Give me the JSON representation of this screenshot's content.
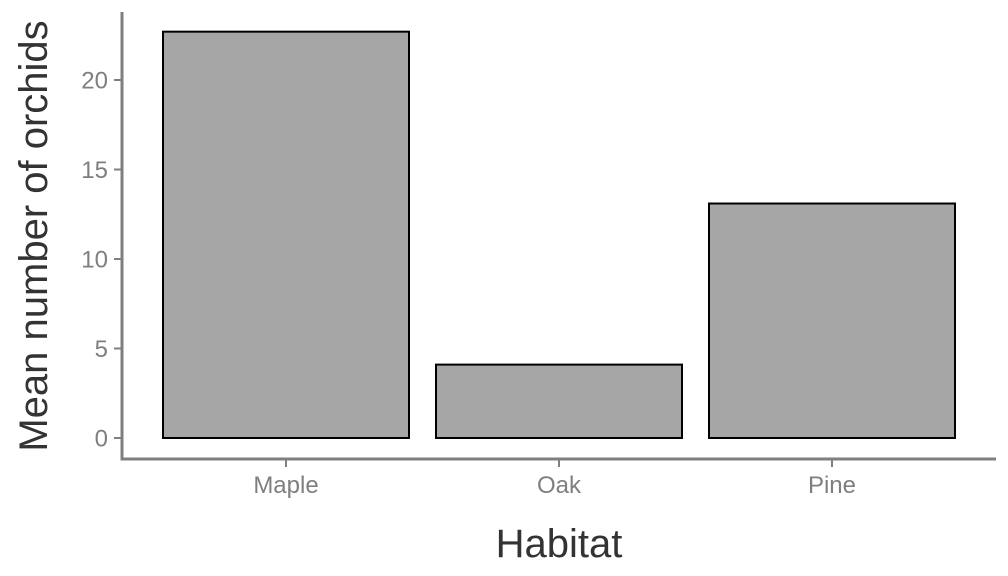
{
  "chart_data": {
    "type": "bar",
    "categories": [
      "Maple",
      "Oak",
      "Pine"
    ],
    "values": [
      22.7,
      4.1,
      13.1
    ],
    "xlabel": "Habitat",
    "ylabel": "Mean number of orchids",
    "ylim": [
      0,
      23.0
    ],
    "yticks": [
      0,
      5,
      10,
      15,
      20
    ],
    "bar_color": "#a6a6a6",
    "bar_outline_color": "#000000",
    "axis_color": "#7f7f7f",
    "grid": false,
    "legend": "none"
  }
}
